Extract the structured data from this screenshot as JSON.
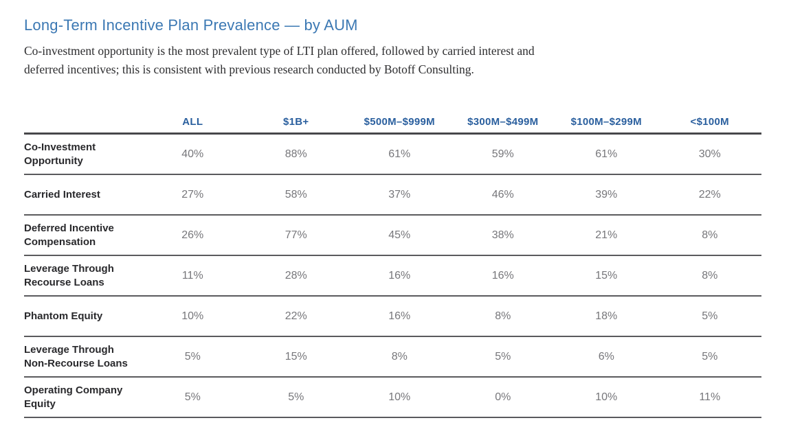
{
  "header": {
    "title": "Long-Term Incentive Plan Prevalence — by AUM"
  },
  "intro": {
    "line1": "Co-investment opportunity is the most prevalent type of LTI plan offered, followed by carried interest and",
    "line2": "deferred incentives; this is consistent with previous research conducted by Botoff Consulting."
  },
  "colors": {
    "title_blue": "#3b78b3",
    "column_header_blue": "#2a5f9e",
    "row_label_dark": "#29292c",
    "value_gray": "#76767a",
    "rule_gray": "#5a5a5d"
  },
  "chart_data": {
    "type": "table",
    "title": "Long-Term Incentive Plan Prevalence — by AUM",
    "columns": [
      "ALL",
      "$1B+",
      "$500M–$999M",
      "$300M–$499M",
      "$100M–$299M",
      "<$100M"
    ],
    "rows": [
      {
        "label": "Co-Investment Opportunity",
        "values": [
          "40%",
          "88%",
          "61%",
          "59%",
          "61%",
          "30%"
        ]
      },
      {
        "label": "Carried Interest",
        "values": [
          "27%",
          "58%",
          "37%",
          "46%",
          "39%",
          "22%"
        ]
      },
      {
        "label": "Deferred Incentive Compensation",
        "values": [
          "26%",
          "77%",
          "45%",
          "38%",
          "21%",
          "8%"
        ]
      },
      {
        "label": "Leverage Through Recourse Loans",
        "values": [
          "11%",
          "28%",
          "16%",
          "16%",
          "15%",
          "8%"
        ]
      },
      {
        "label": "Phantom Equity",
        "values": [
          "10%",
          "22%",
          "16%",
          "8%",
          "18%",
          "5%"
        ]
      },
      {
        "label": "Leverage Through Non-Recourse Loans",
        "values": [
          "5%",
          "15%",
          "8%",
          "5%",
          "6%",
          "5%"
        ]
      },
      {
        "label": "Operating Company Equity",
        "values": [
          "5%",
          "5%",
          "10%",
          "0%",
          "10%",
          "11%"
        ]
      }
    ]
  }
}
